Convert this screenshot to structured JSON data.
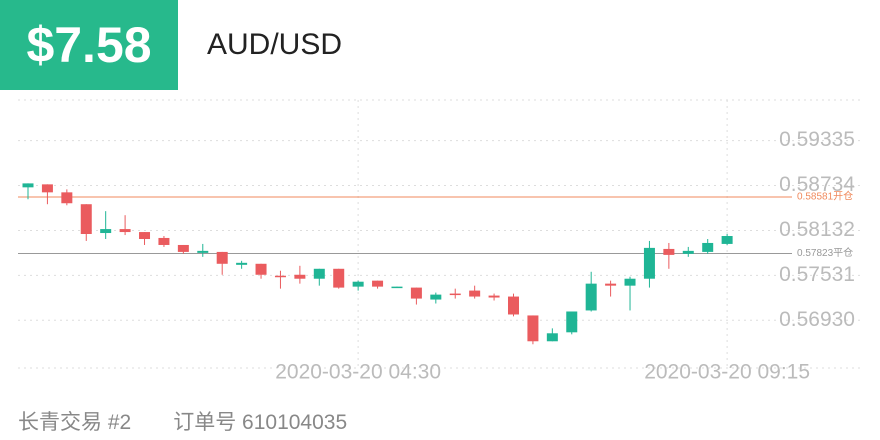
{
  "header": {
    "price": "$7.58",
    "symbol": "AUD/USD"
  },
  "chart_data": {
    "type": "candlestick",
    "categories": [
      null,
      null,
      null,
      null,
      null,
      null,
      null,
      null,
      null,
      null,
      null,
      null,
      null,
      null,
      null,
      null,
      null,
      "2020-03-20 04:30",
      null,
      null,
      null,
      null,
      null,
      null,
      null,
      null,
      null,
      null,
      null,
      null,
      null,
      null,
      null,
      null,
      null,
      null,
      "2020-03-20 09:15"
    ],
    "open": [
      0.5871,
      0.5875,
      0.58643,
      0.58484,
      0.58098,
      0.58151,
      0.58111,
      0.58032,
      0.57938,
      0.57832,
      0.57845,
      0.57672,
      0.57686,
      0.57526,
      0.57539,
      0.57486,
      0.57619,
      0.5738,
      0.5746,
      0.57367,
      0.57367,
      0.57207,
      0.57287,
      0.57327,
      0.5726,
      0.57247,
      0.56994,
      0.56648,
      0.56768,
      0.57061,
      0.5742,
      0.57393,
      0.57486,
      0.57885,
      0.57819,
      0.57845,
      0.57952
    ],
    "high": [
      0.58763,
      0.5875,
      0.58683,
      0.58484,
      0.58391,
      0.58337,
      0.58111,
      0.58058,
      0.57938,
      0.57952,
      0.57845,
      0.57726,
      0.57686,
      0.57593,
      0.57659,
      0.57619,
      0.57619,
      0.5746,
      0.5746,
      0.5738,
      0.57367,
      0.573,
      0.57353,
      0.57393,
      0.57287,
      0.57287,
      0.56994,
      0.56821,
      0.57047,
      0.57579,
      0.5746,
      0.57513,
      0.57992,
      0.57965,
      0.57912,
      0.58018,
      0.58085
    ],
    "low": [
      0.5855,
      0.58484,
      0.5847,
      0.57992,
      0.58018,
      0.58071,
      0.57938,
      0.57912,
      0.57819,
      0.57779,
      0.57539,
      0.57619,
      0.57486,
      0.57353,
      0.5742,
      0.57393,
      0.57353,
      0.57327,
      0.57353,
      0.57367,
      0.5714,
      0.57154,
      0.5722,
      0.5722,
      0.57194,
      0.56981,
      0.56608,
      0.56648,
      0.56741,
      0.57047,
      0.57247,
      0.57061,
      0.57367,
      0.57619,
      0.57779,
      0.57819,
      0.57938
    ],
    "close": [
      0.58763,
      0.58643,
      0.58497,
      0.58085,
      0.58151,
      0.58111,
      0.58018,
      0.57938,
      0.57845,
      0.57859,
      0.57686,
      0.57699,
      0.57539,
      0.57513,
      0.57486,
      0.57619,
      0.57367,
      0.57446,
      0.5738,
      0.5738,
      0.5722,
      0.57273,
      0.57273,
      0.57247,
      0.57234,
      0.57007,
      0.56648,
      0.56755,
      0.57047,
      0.5742,
      0.57393,
      0.57486,
      0.57899,
      0.57805,
      0.57859,
      0.57965,
      0.58058
    ],
    "up_color": "#1fb595",
    "down_color": "#ea5b5e",
    "ylim": [
      0.5629,
      0.5988
    ],
    "yticks": [
      {
        "value": 0.59335,
        "label": "0.59335"
      },
      {
        "value": 0.58734,
        "label": "0.58734"
      },
      {
        "value": 0.58132,
        "label": "0.58132"
      },
      {
        "value": 0.57531,
        "label": "0.57531"
      },
      {
        "value": 0.5693,
        "label": "0.56930"
      }
    ],
    "grid": true,
    "reference_lines": [
      {
        "value": 0.58581,
        "label": "0.58581开仓",
        "color": "#f08a5d"
      },
      {
        "value": 0.57823,
        "label": "0.57823平仓",
        "color": "#999999"
      }
    ]
  },
  "footer": {
    "trade": "长青交易 #2",
    "order": "订单号 610104035"
  }
}
